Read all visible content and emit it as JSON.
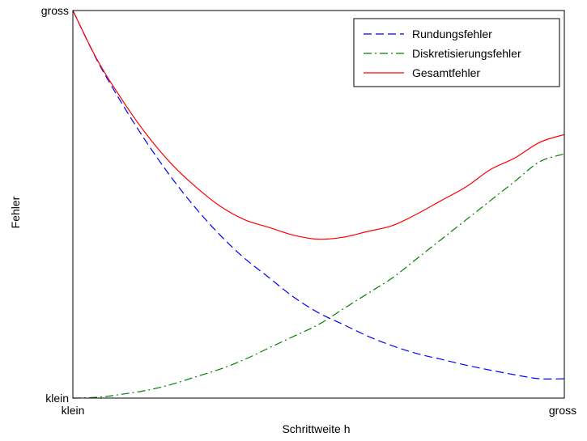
{
  "chart_data": {
    "type": "line",
    "xlabel": "Schrittweite h",
    "ylabel": "Fehler",
    "x_ticks": [
      "klein",
      "gross"
    ],
    "y_ticks": [
      "klein",
      "gross"
    ],
    "xlim": [
      0,
      1
    ],
    "ylim": [
      0,
      1
    ],
    "grid": false,
    "legend_position": "top-right",
    "series": [
      {
        "name": "Rundungsfehler",
        "color": "#0000ff",
        "style": "dashed",
        "x": [
          0,
          0.05,
          0.1,
          0.15,
          0.2,
          0.25,
          0.3,
          0.35,
          0.4,
          0.45,
          0.5,
          0.55,
          0.6,
          0.65,
          0.7,
          0.75,
          0.8,
          0.85,
          0.9,
          0.95,
          1
        ],
        "y": [
          1.0,
          0.87,
          0.76,
          0.66,
          0.57,
          0.49,
          0.42,
          0.36,
          0.31,
          0.26,
          0.22,
          0.19,
          0.16,
          0.135,
          0.115,
          0.1,
          0.085,
          0.072,
          0.06,
          0.05,
          0.05
        ]
      },
      {
        "name": "Diskretisierungsfehler",
        "color": "#008000",
        "style": "dashdot",
        "x": [
          0,
          0.05,
          0.1,
          0.15,
          0.2,
          0.25,
          0.3,
          0.35,
          0.4,
          0.45,
          0.5,
          0.55,
          0.6,
          0.65,
          0.7,
          0.75,
          0.8,
          0.85,
          0.9,
          0.95,
          1
        ],
        "y": [
          0.0,
          0.002,
          0.01,
          0.02,
          0.035,
          0.055,
          0.075,
          0.1,
          0.13,
          0.16,
          0.19,
          0.23,
          0.27,
          0.31,
          0.36,
          0.41,
          0.46,
          0.51,
          0.56,
          0.61,
          0.63
        ]
      },
      {
        "name": "Gesamtfehler",
        "color": "#ff0000",
        "style": "solid",
        "x": [
          0,
          0.05,
          0.1,
          0.15,
          0.2,
          0.25,
          0.3,
          0.35,
          0.4,
          0.45,
          0.5,
          0.55,
          0.6,
          0.65,
          0.7,
          0.75,
          0.8,
          0.85,
          0.9,
          0.95,
          1
        ],
        "y": [
          1.0,
          0.872,
          0.77,
          0.68,
          0.605,
          0.545,
          0.495,
          0.46,
          0.44,
          0.42,
          0.41,
          0.415,
          0.43,
          0.445,
          0.475,
          0.51,
          0.545,
          0.59,
          0.62,
          0.66,
          0.68
        ]
      }
    ]
  }
}
